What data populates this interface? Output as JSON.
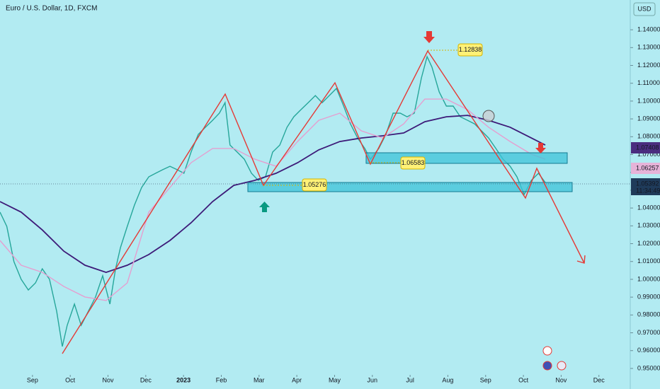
{
  "chart_data": {
    "type": "line",
    "title": "Euro / U.S. Dollar, 1D, FXCM",
    "currency": "USD",
    "xlim": [
      -0.86,
      15.83
    ],
    "ylim": [
      0.9464,
      1.1567
    ],
    "xticks": [
      {
        "value": 0,
        "label": "Sep"
      },
      {
        "value": 1,
        "label": "Oct"
      },
      {
        "value": 2,
        "label": "Nov"
      },
      {
        "value": 3,
        "label": "Dec"
      },
      {
        "value": 4,
        "label": "2023"
      },
      {
        "value": 5,
        "label": "Feb"
      },
      {
        "value": 6,
        "label": "Mar"
      },
      {
        "value": 7,
        "label": "Apr"
      },
      {
        "value": 8,
        "label": "May"
      },
      {
        "value": 9,
        "label": "Jun"
      },
      {
        "value": 10,
        "label": "Jul"
      },
      {
        "value": 11,
        "label": "Aug"
      },
      {
        "value": 12,
        "label": "Sep"
      },
      {
        "value": 13,
        "label": "Oct"
      },
      {
        "value": 14,
        "label": "Nov"
      },
      {
        "value": 15,
        "label": "Dec"
      }
    ],
    "yticks": [
      {
        "value": 1.14,
        "label": "1.14000"
      },
      {
        "value": 1.13,
        "label": "1.13000"
      },
      {
        "value": 1.12,
        "label": "1.12000"
      },
      {
        "value": 1.11,
        "label": "1.11000"
      },
      {
        "value": 1.1,
        "label": "1.10000"
      },
      {
        "value": 1.09,
        "label": "1.09000"
      },
      {
        "value": 1.08,
        "label": "1.08000"
      },
      {
        "value": 1.07,
        "label": "1.07000"
      },
      {
        "value": 1.06,
        "label": "1.06000"
      },
      {
        "value": 1.05,
        "label": "1.05000"
      },
      {
        "value": 1.04,
        "label": "1.04000"
      },
      {
        "value": 1.03,
        "label": "1.03000"
      },
      {
        "value": 1.02,
        "label": "1.02000"
      },
      {
        "value": 1.01,
        "label": "1.01000"
      },
      {
        "value": 1.0,
        "label": "1.00000"
      },
      {
        "value": 0.99,
        "label": "0.99000"
      },
      {
        "value": 0.98,
        "label": "0.98000"
      },
      {
        "value": 0.97,
        "label": "0.97000"
      },
      {
        "value": 0.96,
        "label": "0.96000"
      },
      {
        "value": 0.95,
        "label": "0.95000"
      }
    ],
    "series": [
      {
        "color": "#26a69a",
        "width": 1.4,
        "x": [
          -0.86,
          -0.68,
          -0.49,
          -0.3,
          -0.11,
          0.08,
          0.26,
          0.45,
          0.64,
          0.79,
          0.92,
          1.11,
          1.29,
          1.48,
          1.67,
          1.86,
          2.05,
          2.2,
          2.33,
          2.51,
          2.7,
          2.89,
          3.08,
          3.26,
          3.45,
          3.64,
          3.83,
          4.01,
          4.2,
          4.39,
          4.58,
          4.77,
          4.95,
          5.1,
          5.23,
          5.42,
          5.61,
          5.8,
          5.98,
          6.17,
          6.36,
          6.55,
          6.74,
          6.92,
          7.11,
          7.3,
          7.49,
          7.67,
          7.86,
          8.05,
          8.24,
          8.42,
          8.61,
          8.8,
          8.95,
          9.17,
          9.36,
          9.55,
          9.74,
          9.92,
          10.11,
          10.3,
          10.45,
          10.58,
          10.77,
          10.96,
          11.14,
          11.33,
          11.52,
          11.71,
          11.89,
          12.08,
          12.27,
          12.46,
          12.65,
          12.83,
          13.02,
          13.21,
          13.4,
          13.58
        ],
        "values": [
          1.0377,
          1.0297,
          1.0099,
          1.0,
          0.994,
          0.998,
          1.0059,
          1.0,
          0.9821,
          0.9623,
          0.9742,
          0.9861,
          0.9742,
          0.9821,
          0.9901,
          1.002,
          0.9861,
          1.0059,
          1.0178,
          1.0297,
          1.0416,
          1.0515,
          1.0575,
          1.0595,
          1.0615,
          1.0634,
          1.0615,
          1.0595,
          1.0714,
          1.0813,
          1.0853,
          1.0892,
          1.0932,
          1.0991,
          1.0753,
          1.0714,
          1.0674,
          1.0595,
          1.0555,
          1.0575,
          1.0714,
          1.0753,
          1.0853,
          1.0912,
          1.0952,
          1.0991,
          1.1031,
          1.0991,
          1.1031,
          1.1071,
          1.0972,
          1.0872,
          1.0793,
          1.0734,
          1.0674,
          1.0734,
          1.0813,
          1.0932,
          1.0932,
          1.0912,
          1.0932,
          1.113,
          1.1249,
          1.119,
          1.1051,
          1.0972,
          1.0972,
          1.0912,
          1.0892,
          1.0872,
          1.0833,
          1.0793,
          1.0734,
          1.0674,
          1.0634,
          1.0575,
          1.0476,
          1.0555,
          1.0595,
          1.0543
        ]
      },
      {
        "color": "#3d1a78",
        "width": 1.8,
        "x": [
          -0.86,
          -0.3,
          0.26,
          0.83,
          1.39,
          1.95,
          2.51,
          3.08,
          3.64,
          4.2,
          4.77,
          5.33,
          5.89,
          6.45,
          7.02,
          7.58,
          8.14,
          8.71,
          9.27,
          9.83,
          10.39,
          10.96,
          11.52,
          12.08,
          12.65,
          13.21,
          13.58
        ],
        "values": [
          1.0436,
          1.0377,
          1.0277,
          1.0158,
          1.0079,
          1.0039,
          1.0079,
          1.0139,
          1.0218,
          1.0317,
          1.0436,
          1.0527,
          1.0555,
          1.0595,
          1.0654,
          1.0726,
          1.0773,
          1.0793,
          1.0805,
          1.0821,
          1.0884,
          1.0912,
          1.092,
          1.0892,
          1.0853,
          1.0793,
          1.0753
        ]
      },
      {
        "color": "#e59fd0",
        "width": 1.4,
        "x": [
          -0.86,
          -0.3,
          0.26,
          0.83,
          1.39,
          1.95,
          2.51,
          3.08,
          3.64,
          4.2,
          4.77,
          5.33,
          5.89,
          6.45,
          7.02,
          7.58,
          8.14,
          8.71,
          9.27,
          9.83,
          10.39,
          10.96,
          11.52,
          12.08,
          12.65,
          13.21,
          13.58
        ],
        "values": [
          1.0218,
          1.0079,
          1.0039,
          0.996,
          0.9901,
          0.9881,
          0.998,
          1.0377,
          1.0515,
          1.0654,
          1.0734,
          1.0734,
          1.0674,
          1.0634,
          1.0773,
          1.0892,
          1.0932,
          1.0833,
          1.0793,
          1.0872,
          1.1011,
          1.1011,
          1.0952,
          1.0853,
          1.0773,
          1.0702,
          1.0674
        ]
      }
    ],
    "annotations": [
      "1.12838",
      "1.06583",
      "1.05276"
    ],
    "price_badges": [
      {
        "label": "1.07408",
        "color": "#4a2d7f"
      },
      {
        "label": "1.06257",
        "color": "#e6b3d8"
      },
      {
        "label": "1.05392",
        "color": "#1f3b5a"
      }
    ],
    "countdown": "11:34:49"
  }
}
